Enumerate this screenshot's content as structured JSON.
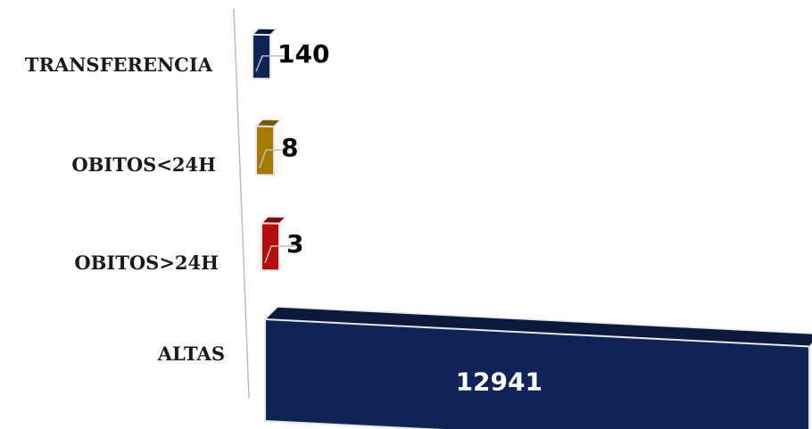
{
  "chart_data": {
    "type": "bar",
    "orientation": "horizontal",
    "categories": [
      "TRANSFERENCIA",
      "OBITOS<24H",
      "OBITOS>24H",
      "ALTAS"
    ],
    "values": [
      140,
      8,
      3,
      12941
    ],
    "colors": [
      "#0f2356",
      "#a67c00",
      "#b30f0f",
      "#0f2356"
    ],
    "grid": false,
    "legend": "none"
  }
}
